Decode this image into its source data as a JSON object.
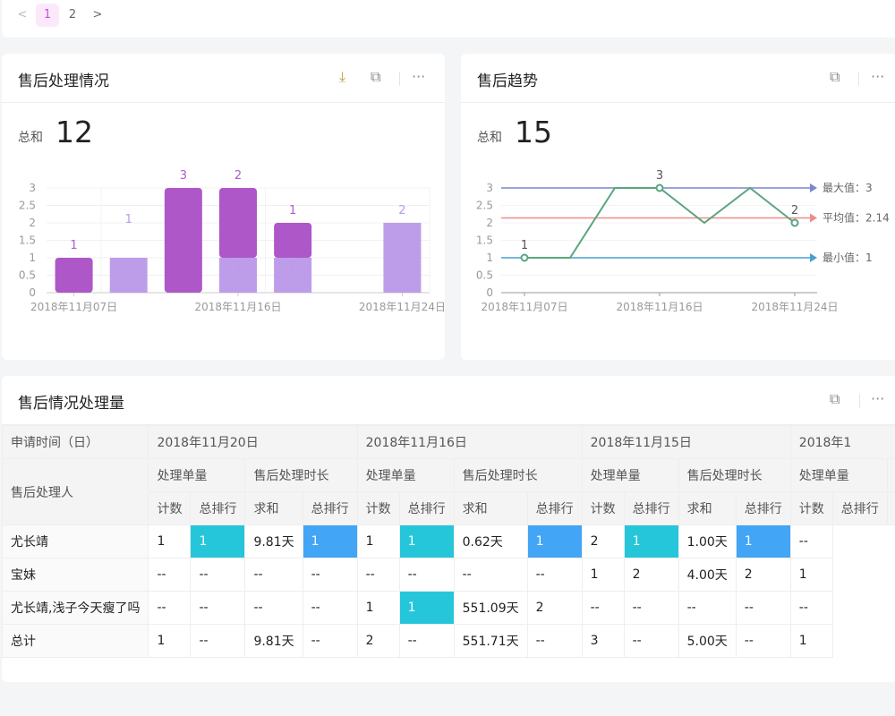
{
  "pagination": {
    "prev": "<",
    "pages": [
      "1",
      "2"
    ],
    "active": "1",
    "next": ">"
  },
  "colors": {
    "accent": "#c54fe0",
    "bar_dark": "#ae57c9",
    "bar_light": "#bd9de9",
    "line": "#5aa57e",
    "max_line": "#7b86d0",
    "avg_line": "#ee8c8c",
    "min_line": "#4a9fd0",
    "rank_count": "#26c6da",
    "rank_duration": "#42a5f5"
  },
  "card1": {
    "title": "售后处理情况",
    "sum_label": "总和",
    "sum_value": "12",
    "icons": [
      "download-icon",
      "expand-icon",
      "more-icon"
    ]
  },
  "card2": {
    "title": "售后趋势",
    "sum_label": "总和",
    "sum_value": "15",
    "icons": [
      "expand-icon",
      "more-icon"
    ]
  },
  "chart_data": [
    {
      "type": "bar",
      "stacked": true,
      "categories": [
        "2018年11月07日",
        "",
        "",
        "2018年11月16日",
        "",
        "",
        "2018年11月24日"
      ],
      "series": [
        {
          "values": [
            1,
            null,
            3,
            2,
            1,
            null,
            null
          ]
        },
        {
          "values": [
            null,
            1,
            null,
            1,
            1,
            null,
            2
          ]
        }
      ],
      "yticks": [
        "0",
        "0.5",
        "1",
        "1.5",
        "2",
        "2.5",
        "3"
      ],
      "ylim": [
        0,
        3
      ],
      "grid": true
    },
    {
      "type": "line",
      "categories": [
        "2018年11月07日",
        "",
        "",
        "2018年11月16日",
        "",
        "",
        "2018年11月24日"
      ],
      "values": [
        1,
        1,
        3,
        3,
        2,
        3,
        2
      ],
      "point_labels": [
        [
          "0",
          "1"
        ],
        [
          "3",
          "3"
        ],
        [
          "6",
          "2"
        ]
      ],
      "yticks": [
        "0",
        "0.5",
        "1",
        "1.5",
        "2",
        "2.5",
        "3"
      ],
      "ylim": [
        0,
        3
      ],
      "grid": true,
      "mark_lines": [
        {
          "label": "最大值：3",
          "value": 3
        },
        {
          "label": "平均值：2.14",
          "value": 2.14
        },
        {
          "label": "最小值：1",
          "value": 1
        }
      ]
    }
  ],
  "table_card": {
    "title": "售后情况处理量",
    "icons": [
      "expand-icon",
      "more-icon"
    ],
    "corner_top": "申请时间（日）",
    "corner_row": "售后处理人",
    "dates": [
      "2018年11月20日",
      "2018年11月16日",
      "2018年11月15日",
      "2018年1"
    ],
    "measures": [
      "处理单量",
      "售后处理时长"
    ],
    "subs": [
      "计数",
      "总排行",
      "求和",
      "总排行"
    ],
    "rows": [
      {
        "name": "尤长靖",
        "cells": [
          "1",
          "1",
          "9.81天",
          "1",
          "1",
          "1",
          "0.62天",
          "1",
          "2",
          "1",
          "1.00天",
          "1",
          "--"
        ],
        "hl": [
          1,
          3,
          5,
          7,
          9,
          11
        ]
      },
      {
        "name": "宝妹",
        "cells": [
          "--",
          "--",
          "--",
          "--",
          "--",
          "--",
          "--",
          "--",
          "1",
          "2",
          "4.00天",
          "2",
          "1"
        ],
        "hl": []
      },
      {
        "name": "尤长靖,浅子今天瘦了吗",
        "cells": [
          "--",
          "--",
          "--",
          "--",
          "1",
          "1",
          "551.09天",
          "2",
          "--",
          "--",
          "--",
          "--",
          "--"
        ],
        "hl": [
          5
        ]
      },
      {
        "name": "总计",
        "cells": [
          "1",
          "--",
          "9.81天",
          "--",
          "2",
          "--",
          "551.71天",
          "--",
          "3",
          "--",
          "5.00天",
          "--",
          "1"
        ],
        "hl": []
      }
    ]
  }
}
